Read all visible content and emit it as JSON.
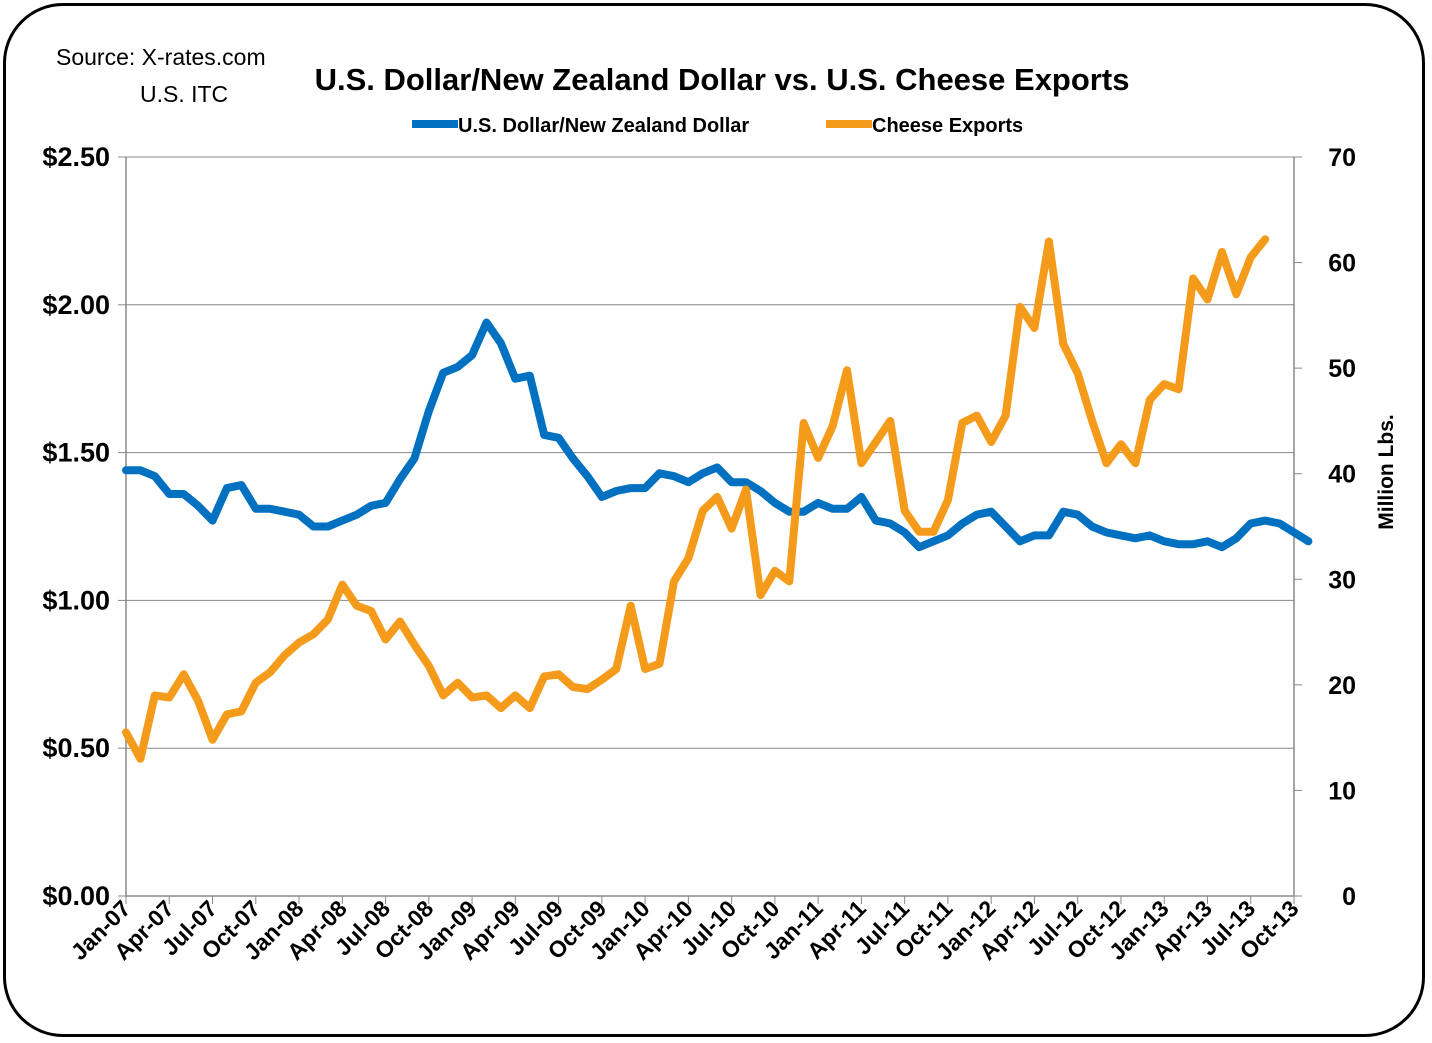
{
  "source": {
    "line1": "Source:  X-rates.com",
    "line2": "U.S. ITC"
  },
  "chart_data": {
    "type": "line",
    "title": "U.S. Dollar/New Zealand Dollar vs. U.S. Cheese Exports",
    "y_axis_left": {
      "range": [
        0,
        2.5
      ],
      "ticks": [
        "$0.00",
        "$0.50",
        "$1.00",
        "$1.50",
        "$2.00",
        "$2.50"
      ]
    },
    "y_axis_right": {
      "label": "Million Lbs.",
      "range": [
        0,
        70
      ],
      "ticks": [
        "0",
        "10",
        "20",
        "30",
        "40",
        "50",
        "60",
        "70"
      ]
    },
    "x_tick_labels": [
      "Jan-07",
      "Apr-07",
      "Jul-07",
      "Oct-07",
      "Jan-08",
      "Apr-08",
      "Jul-08",
      "Oct-08",
      "Jan-09",
      "Apr-09",
      "Jul-09",
      "Oct-09",
      "Jan-10",
      "Apr-10",
      "Jul-10",
      "Oct-10",
      "Jan-11",
      "Apr-11",
      "Jul-11",
      "Oct-11",
      "Jan-12",
      "Apr-12",
      "Jul-12",
      "Oct-12",
      "Jan-13",
      "Apr-13",
      "Jul-13",
      "Oct-13"
    ],
    "grid": "horizontal",
    "legend_position": "top",
    "series": [
      {
        "name": "U.S. Dollar/New Zealand Dollar",
        "axis": "left",
        "color": "#0070C0",
        "values": [
          1.44,
          1.44,
          1.42,
          1.36,
          1.36,
          1.32,
          1.27,
          1.38,
          1.39,
          1.31,
          1.31,
          1.3,
          1.29,
          1.25,
          1.25,
          1.27,
          1.29,
          1.32,
          1.33,
          1.41,
          1.48,
          1.64,
          1.77,
          1.79,
          1.83,
          1.94,
          1.87,
          1.75,
          1.76,
          1.56,
          1.55,
          1.48,
          1.42,
          1.35,
          1.37,
          1.38,
          1.38,
          1.43,
          1.42,
          1.4,
          1.43,
          1.45,
          1.4,
          1.4,
          1.37,
          1.33,
          1.3,
          1.3,
          1.33,
          1.31,
          1.31,
          1.35,
          1.27,
          1.26,
          1.23,
          1.18,
          1.2,
          1.22,
          1.26,
          1.29,
          1.3,
          1.25,
          1.2,
          1.22,
          1.22,
          1.3,
          1.29,
          1.25,
          1.23,
          1.22,
          1.21,
          1.22,
          1.2,
          1.19,
          1.19,
          1.2,
          1.18,
          1.21,
          1.26,
          1.27,
          1.26,
          1.23,
          1.2
        ]
      },
      {
        "name": "Cheese Exports",
        "axis": "right",
        "color": "#F59B1B",
        "values": [
          15.5,
          13.0,
          19.0,
          18.8,
          21.0,
          18.5,
          14.8,
          17.2,
          17.5,
          20.2,
          21.2,
          22.8,
          24.0,
          24.8,
          26.2,
          29.5,
          27.5,
          27.0,
          24.3,
          26.0,
          23.8,
          21.8,
          19.0,
          20.2,
          18.8,
          19.0,
          17.8,
          19.0,
          17.8,
          20.8,
          21.0,
          19.8,
          19.6,
          20.5,
          21.5,
          27.5,
          21.5,
          22.0,
          29.8,
          32.0,
          36.5,
          37.8,
          34.8,
          38.5,
          28.5,
          30.8,
          29.8,
          44.8,
          41.5,
          44.5,
          49.8,
          41.0,
          43.0,
          45.0,
          36.5,
          34.5,
          34.5,
          37.5,
          44.8,
          45.5,
          43.0,
          45.5,
          55.8,
          53.8,
          62.0,
          52.3,
          49.5,
          45.0,
          41.0,
          42.8,
          41.0,
          47.0,
          48.5,
          48.0,
          58.5,
          56.5,
          61.0,
          57.0,
          60.5,
          62.2
        ]
      }
    ]
  }
}
